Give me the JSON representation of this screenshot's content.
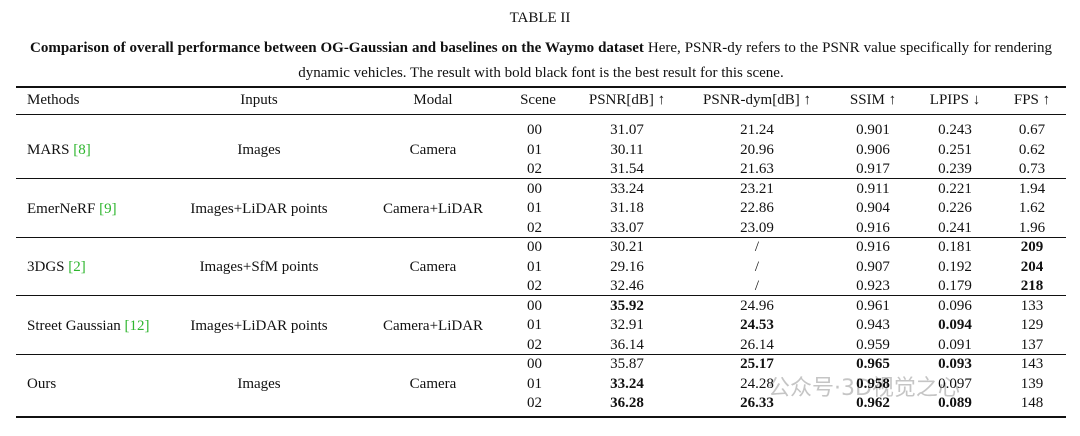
{
  "header": {
    "title": "TABLE II",
    "caption_bold": "Comparison of overall performance between OG-Gaussian and baselines on the Waymo dataset",
    "caption_text": "Here, PSNR-dy refers to the PSNR value specifically for rendering dynamic vehicles. The result with bold black font is the best result for this scene."
  },
  "table": {
    "columns": [
      "Methods",
      "Inputs",
      "Modal",
      "Scene",
      "PSNR[dB] ↑",
      "PSNR-dym[dB] ↑",
      "SSIM ↑",
      "LPIPS ↓",
      "FPS ↑"
    ],
    "groups": [
      {
        "method": "MARS",
        "ref": "[8]",
        "inputs": "Images",
        "modal": "Camera",
        "rows": [
          {
            "cells": [
              "00",
              "31.07",
              "21.24",
              "0.901",
              "0.243",
              "0.67"
            ],
            "bold": []
          },
          {
            "cells": [
              "01",
              "30.11",
              "20.96",
              "0.906",
              "0.251",
              "0.62"
            ],
            "bold": []
          },
          {
            "cells": [
              "02",
              "31.54",
              "21.63",
              "0.917",
              "0.239",
              "0.73"
            ],
            "bold": []
          }
        ]
      },
      {
        "method": "EmerNeRF",
        "ref": "[9]",
        "inputs": "Images+LiDAR points",
        "modal": "Camera+LiDAR",
        "rows": [
          {
            "cells": [
              "00",
              "33.24",
              "23.21",
              "0.911",
              "0.221",
              "1.94"
            ],
            "bold": []
          },
          {
            "cells": [
              "01",
              "31.18",
              "22.86",
              "0.904",
              "0.226",
              "1.62"
            ],
            "bold": []
          },
          {
            "cells": [
              "02",
              "33.07",
              "23.09",
              "0.916",
              "0.241",
              "1.96"
            ],
            "bold": []
          }
        ]
      },
      {
        "method": "3DGS",
        "ref": "[2]",
        "inputs": "Images+SfM points",
        "modal": "Camera",
        "rows": [
          {
            "cells": [
              "00",
              "30.21",
              "/",
              "0.916",
              "0.181",
              "209"
            ],
            "bold": [
              5
            ]
          },
          {
            "cells": [
              "01",
              "29.16",
              "/",
              "0.907",
              "0.192",
              "204"
            ],
            "bold": [
              5
            ]
          },
          {
            "cells": [
              "02",
              "32.46",
              "/",
              "0.923",
              "0.179",
              "218"
            ],
            "bold": [
              5
            ]
          }
        ]
      },
      {
        "method": "Street Gaussian",
        "ref": "[12]",
        "inputs": "Images+LiDAR points",
        "modal": "Camera+LiDAR",
        "rows": [
          {
            "cells": [
              "00",
              "35.92",
              "24.96",
              "0.961",
              "0.096",
              "133"
            ],
            "bold": [
              1
            ]
          },
          {
            "cells": [
              "01",
              "32.91",
              "24.53",
              "0.943",
              "0.094",
              "129"
            ],
            "bold": [
              2,
              4
            ]
          },
          {
            "cells": [
              "02",
              "36.14",
              "26.14",
              "0.959",
              "0.091",
              "137"
            ],
            "bold": []
          }
        ]
      },
      {
        "method": "Ours",
        "ref": null,
        "inputs": "Images",
        "modal": "Camera",
        "rows": [
          {
            "cells": [
              "00",
              "35.87",
              "25.17",
              "0.965",
              "0.093",
              "143"
            ],
            "bold": [
              2,
              3,
              4
            ]
          },
          {
            "cells": [
              "01",
              "33.24",
              "24.28",
              "0.958",
              "0.097",
              "139"
            ],
            "bold": [
              1,
              3
            ]
          },
          {
            "cells": [
              "02",
              "36.28",
              "26.33",
              "0.962",
              "0.089",
              "148"
            ],
            "bold": [
              1,
              2,
              3,
              4
            ]
          }
        ]
      }
    ]
  },
  "watermark": "公众号·3D视觉之心"
}
